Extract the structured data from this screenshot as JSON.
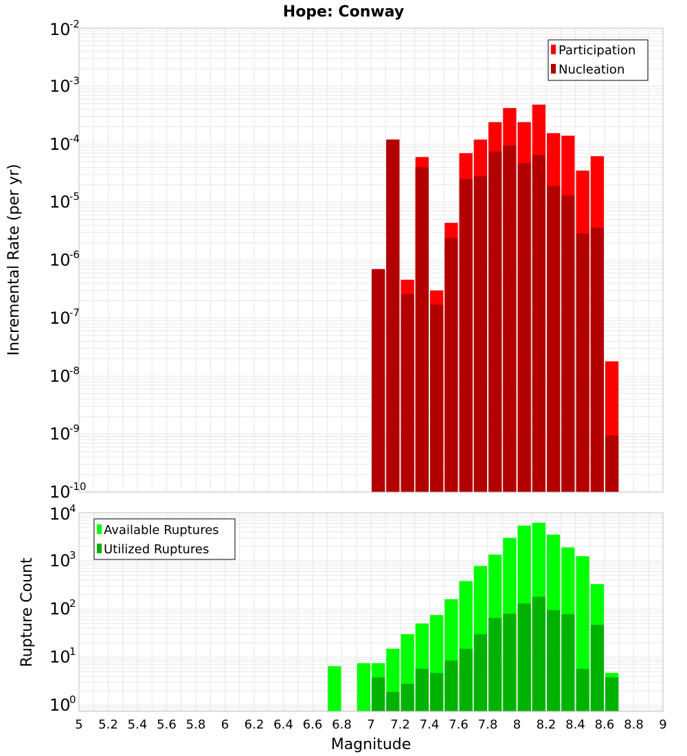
{
  "colors": {
    "participation": "#ff0000",
    "nucleation": "#b20000",
    "available": "#00ff00",
    "utilized": "#00b200",
    "grid": "#e6e6e6",
    "frame": "#bdbdbd"
  },
  "chart_data": [
    {
      "type": "bar",
      "title": "Hope: Conway",
      "ylabel": "Incremental Rate (per yr)",
      "xlabel": "",
      "yscale": "log",
      "ylim": [
        1e-10,
        0.01
      ],
      "xlim": [
        5,
        9
      ],
      "bar_width": 0.1,
      "legend": {
        "position": "top-right"
      },
      "x": [
        7.0,
        7.1,
        7.2,
        7.3,
        7.4,
        7.5,
        7.6,
        7.7,
        7.8,
        7.9,
        8.0,
        8.1,
        8.2,
        8.3,
        8.4,
        8.5,
        8.6
      ],
      "series": [
        {
          "name": "Participation",
          "color": "#ff0000",
          "values": [
            7e-07,
            0.00012,
            4.6e-07,
            6e-05,
            3e-07,
            4.4e-06,
            7e-05,
            0.00012,
            0.00024,
            0.00042,
            0.00024,
            0.00048,
            0.000155,
            0.00014,
            3.5e-05,
            6.2e-05,
            1.8e-08
          ]
        },
        {
          "name": "Nucleation",
          "color": "#b20000",
          "values": [
            7e-07,
            0.00012,
            2.6e-07,
            4e-05,
            1.7e-07,
            2.4e-06,
            2.5e-05,
            2.8e-05,
            7.5e-05,
            9.5e-05,
            4.7e-05,
            6.5e-05,
            1.9e-05,
            1.3e-05,
            2.9e-06,
            3.6e-06,
            9.5e-10
          ]
        }
      ]
    },
    {
      "type": "bar",
      "title": "",
      "ylabel": "Rupture Count",
      "xlabel": "Magnitude",
      "yscale": "log",
      "ylim": [
        0.75,
        10000
      ],
      "xlim": [
        5,
        9
      ],
      "bar_width": 0.1,
      "legend": {
        "position": "top-left"
      },
      "x": [
        6.7,
        6.9,
        7.0,
        7.1,
        7.2,
        7.3,
        7.4,
        7.5,
        7.6,
        7.7,
        7.8,
        7.9,
        8.0,
        8.1,
        8.2,
        8.3,
        8.4,
        8.5,
        8.6
      ],
      "series": [
        {
          "name": "Available Ruptures",
          "color": "#00ff00",
          "values": [
            6.5,
            7.5,
            7.5,
            15,
            30,
            50,
            75,
            160,
            380,
            780,
            1350,
            3000,
            5400,
            6200,
            3500,
            1900,
            1250,
            330,
            4.7
          ]
        },
        {
          "name": "Utilized Ruptures",
          "color": "#00b200",
          "values": [
            0,
            0,
            3.8,
            1.9,
            2.8,
            5.7,
            4.7,
            8.5,
            15,
            30,
            65,
            80,
            130,
            180,
            95,
            78,
            5.7,
            47,
            3.8
          ]
        }
      ]
    }
  ],
  "x_ticks": [
    "5",
    "5.2",
    "5.4",
    "5.6",
    "5.8",
    "6",
    "6.2",
    "6.4",
    "6.6",
    "6.8",
    "7",
    "7.2",
    "7.4",
    "7.6",
    "7.8",
    "8",
    "8.2",
    "8.4",
    "8.6",
    "8.8",
    "9"
  ],
  "top_y_ticks": [
    {
      "base": "10",
      "exp": "-10"
    },
    {
      "base": "10",
      "exp": "-9"
    },
    {
      "base": "10",
      "exp": "-8"
    },
    {
      "base": "10",
      "exp": "-7"
    },
    {
      "base": "10",
      "exp": "-6"
    },
    {
      "base": "10",
      "exp": "-5"
    },
    {
      "base": "10",
      "exp": "-4"
    },
    {
      "base": "10",
      "exp": "-3"
    },
    {
      "base": "10",
      "exp": "-2"
    }
  ],
  "bottom_y_ticks": [
    {
      "base": "10",
      "exp": "0"
    },
    {
      "base": "10",
      "exp": "1"
    },
    {
      "base": "10",
      "exp": "2"
    },
    {
      "base": "10",
      "exp": "3"
    },
    {
      "base": "10",
      "exp": "4"
    }
  ]
}
